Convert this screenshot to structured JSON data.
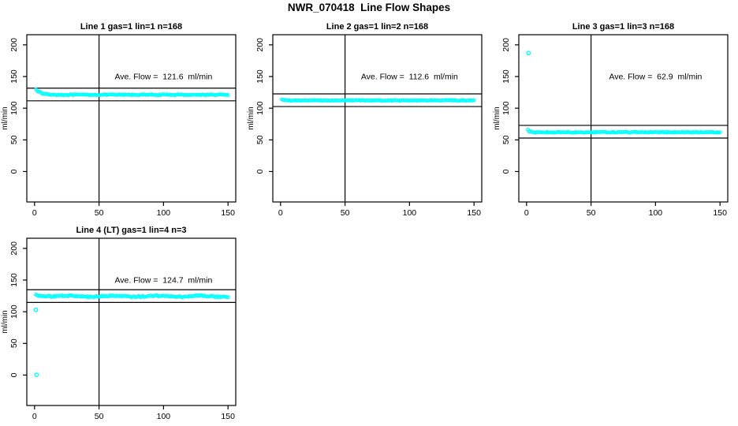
{
  "title": "NWR_070418  Line Flow Shapes",
  "colors": {
    "background": "#FFFFFF",
    "axis": "#000000",
    "points": "#00FFFF",
    "text": "#000000"
  },
  "chart_data": [
    {
      "type": "scatter",
      "panel": "top-left",
      "title": "Line 1 gas=1 lin=1 n=168",
      "annotation": "Ave. Flow =  121.6  ml/min",
      "ave_flow": 121.6,
      "xlabel": "",
      "ylabel": "ml/min",
      "x_ticks": [
        0,
        50,
        100,
        150
      ],
      "y_ticks": [
        0,
        50,
        100,
        150,
        200
      ],
      "xlim": [
        -6,
        156
      ],
      "ylim": [
        -48,
        216
      ],
      "grid": false,
      "ref_line_upper": 131.6,
      "ref_line_lower": 111.6,
      "vertical_line_x": 50,
      "series": {
        "n": 150,
        "x_start": 1,
        "x_end": 150,
        "baseline": 121.2,
        "noise": 0.7,
        "transient": {
          "start": 130.5,
          "tau": 3.5
        },
        "outliers": []
      }
    },
    {
      "type": "scatter",
      "panel": "top-middle",
      "title": "Line 2 gas=1 lin=2 n=168",
      "annotation": "Ave. Flow =  112.6  ml/min",
      "ave_flow": 112.6,
      "xlabel": "",
      "ylabel": "ml/min",
      "x_ticks": [
        0,
        50,
        100,
        150
      ],
      "y_ticks": [
        0,
        50,
        100,
        150,
        200
      ],
      "xlim": [
        -6,
        156
      ],
      "ylim": [
        -48,
        216
      ],
      "grid": false,
      "ref_line_upper": 122.6,
      "ref_line_lower": 102.6,
      "vertical_line_x": 50,
      "series": {
        "n": 150,
        "x_start": 1,
        "x_end": 150,
        "baseline": 112.3,
        "noise": 0.6,
        "transient": {
          "start": 114.0,
          "tau": 1.2
        },
        "outliers": []
      }
    },
    {
      "type": "scatter",
      "panel": "top-right",
      "title": "Line 3 gas=1 lin=3 n=168",
      "annotation": "Ave. Flow =  62.9  ml/min",
      "ave_flow": 62.9,
      "xlabel": "",
      "ylabel": "ml/min",
      "x_ticks": [
        0,
        50,
        100,
        150
      ],
      "y_ticks": [
        0,
        50,
        100,
        150,
        200
      ],
      "xlim": [
        -6,
        156
      ],
      "ylim": [
        -48,
        216
      ],
      "grid": false,
      "ref_line_upper": 72.9,
      "ref_line_lower": 52.9,
      "vertical_line_x": 50,
      "series": {
        "n": 150,
        "x_start": 1,
        "x_end": 150,
        "baseline": 62.0,
        "noise": 0.7,
        "transient": {
          "start": 66.0,
          "tau": 1.2
        },
        "outliers": [
          [
            1.5,
            187
          ]
        ]
      }
    },
    {
      "type": "scatter",
      "panel": "bottom-left",
      "title": "Line 4 (LT) gas=1 lin=4 n=3",
      "annotation": "Ave. Flow =  124.7  ml/min",
      "ave_flow": 124.7,
      "xlabel": "",
      "ylabel": "ml/min",
      "x_ticks": [
        0,
        50,
        100,
        150
      ],
      "y_ticks": [
        0,
        50,
        100,
        150,
        200
      ],
      "xlim": [
        -6,
        156
      ],
      "ylim": [
        -48,
        216
      ],
      "grid": false,
      "ref_line_upper": 134.7,
      "ref_line_lower": 114.7,
      "vertical_line_x": 50,
      "series": {
        "n": 150,
        "x_start": 1,
        "x_end": 150,
        "baseline": 124.4,
        "noise": 0.9,
        "transient": {
          "start": 126.5,
          "tau": 6
        },
        "wobble": {
          "amp": 0.8,
          "period": 34
        },
        "outliers": [
          [
            1,
            103
          ],
          [
            1.5,
            0.5
          ]
        ]
      }
    }
  ]
}
